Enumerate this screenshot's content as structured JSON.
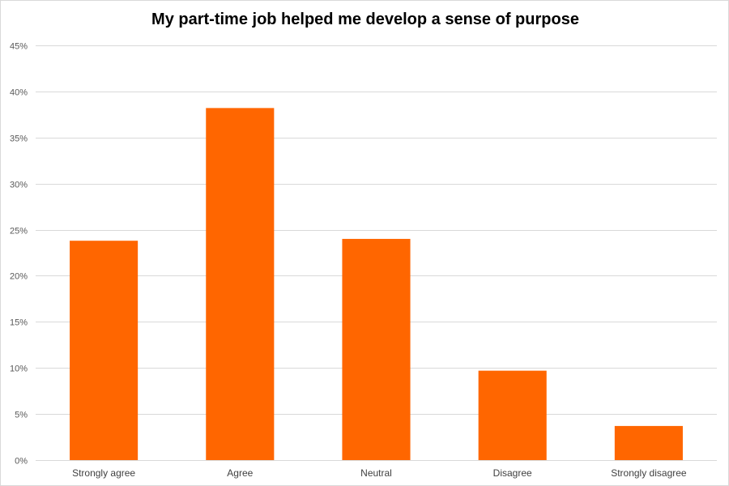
{
  "chart_data": {
    "type": "bar",
    "title": "My part-time job helped me develop a sense of purpose",
    "xlabel": "",
    "ylabel": "",
    "categories": [
      "Strongly agree",
      "Agree",
      "Neutral",
      "Disagree",
      "Strongly disagree"
    ],
    "values": [
      23.8,
      38.2,
      24.0,
      9.7,
      3.7
    ],
    "value_unit": "%",
    "ylim": [
      0,
      45
    ],
    "yticks": [
      0,
      5,
      10,
      15,
      20,
      25,
      30,
      35,
      40,
      45
    ],
    "ytick_labels": [
      "0%",
      "5%",
      "10%",
      "15%",
      "20%",
      "25%",
      "30%",
      "35%",
      "40%",
      "45%"
    ],
    "grid": true,
    "legend": "none",
    "bar_color": "#ff6600",
    "grid_color": "#d9d9d9"
  }
}
